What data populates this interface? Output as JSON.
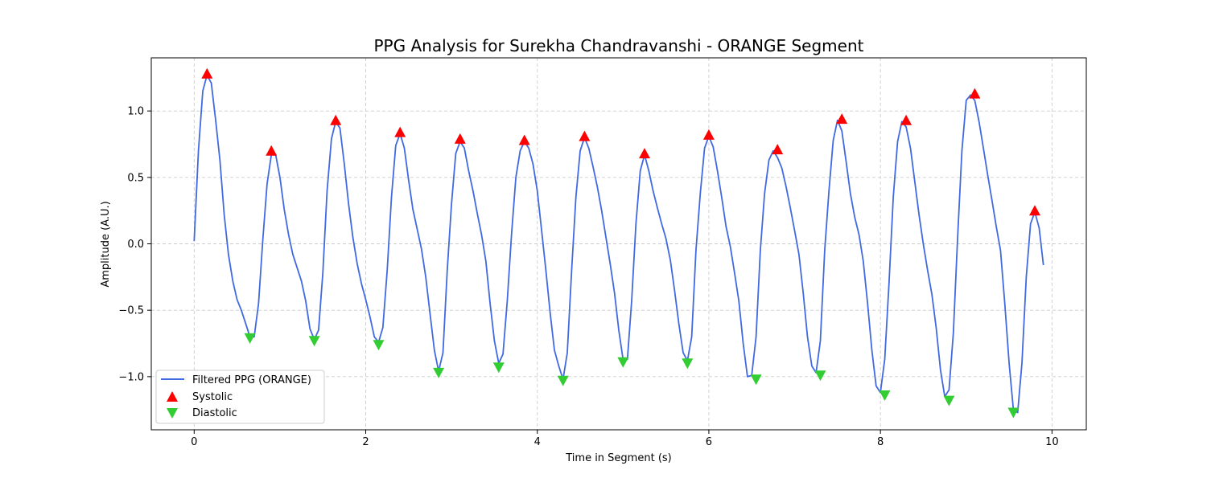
{
  "chart_data": {
    "type": "line",
    "title": "PPG Analysis for Surekha Chandravanshi - ORANGE Segment",
    "xlabel": "Time in Segment (s)",
    "ylabel": "Amplitude (A.U.)",
    "xlim": [
      -0.5,
      10.4
    ],
    "ylim": [
      -1.4,
      1.4
    ],
    "xticks": [
      0,
      2,
      4,
      6,
      8,
      10
    ],
    "xtick_labels": [
      "0",
      "2",
      "4",
      "6",
      "8",
      "10"
    ],
    "yticks": [
      -1.0,
      -0.5,
      0.0,
      0.5,
      1.0
    ],
    "ytick_labels": [
      "−1.0",
      "−0.5",
      "0.0",
      "0.5",
      "1.0"
    ],
    "grid": true,
    "legend_position": "lower-left",
    "series": [
      {
        "name": "Filtered PPG (ORANGE)",
        "color": "#4169E1",
        "x": [
          0,
          0.05,
          0.1,
          0.15,
          0.2,
          0.25,
          0.3,
          0.35,
          0.4,
          0.45,
          0.5,
          0.55,
          0.6,
          0.65,
          0.7,
          0.75,
          0.8,
          0.85,
          0.9,
          0.95,
          1.0,
          1.05,
          1.1,
          1.15,
          1.25,
          1.3,
          1.35,
          1.4,
          1.45,
          1.5,
          1.55,
          1.6,
          1.65,
          1.7,
          1.75,
          1.8,
          1.85,
          1.9,
          1.95,
          2.0,
          2.05,
          2.1,
          2.15,
          2.2,
          2.25,
          2.3,
          2.35,
          2.4,
          2.45,
          2.5,
          2.55,
          2.6,
          2.65,
          2.7,
          2.75,
          2.8,
          2.85,
          2.9,
          2.95,
          3.0,
          3.05,
          3.1,
          3.15,
          3.2,
          3.25,
          3.3,
          3.35,
          3.4,
          3.45,
          3.5,
          3.55,
          3.6,
          3.65,
          3.7,
          3.75,
          3.8,
          3.85,
          3.9,
          3.95,
          4.0,
          4.05,
          4.1,
          4.15,
          4.2,
          4.25,
          4.3,
          4.35,
          4.4,
          4.45,
          4.5,
          4.55,
          4.6,
          4.65,
          4.7,
          4.75,
          4.8,
          4.85,
          4.9,
          4.95,
          5.0,
          5.05,
          5.1,
          5.15,
          5.2,
          5.25,
          5.3,
          5.35,
          5.4,
          5.45,
          5.5,
          5.55,
          5.6,
          5.65,
          5.7,
          5.75,
          5.8,
          5.85,
          5.9,
          5.95,
          6.0,
          6.05,
          6.1,
          6.15,
          6.2,
          6.25,
          6.3,
          6.35,
          6.4,
          6.45,
          6.5,
          6.55,
          6.6,
          6.65,
          6.7,
          6.75,
          6.8,
          6.85,
          6.9,
          6.95,
          7.0,
          7.05,
          7.1,
          7.15,
          7.2,
          7.25,
          7.3,
          7.35,
          7.4,
          7.45,
          7.5,
          7.55,
          7.6,
          7.65,
          7.7,
          7.75,
          7.8,
          7.85,
          7.9,
          7.95,
          8.0,
          8.05,
          8.1,
          8.15,
          8.2,
          8.25,
          8.3,
          8.35,
          8.4,
          8.45,
          8.5,
          8.55,
          8.6,
          8.65,
          8.7,
          8.75,
          8.8,
          8.85,
          8.9,
          8.95,
          9.0,
          9.05,
          9.1,
          9.15,
          9.2,
          9.25,
          9.3,
          9.35,
          9.4,
          9.45,
          9.5,
          9.55,
          9.6,
          9.65,
          9.7,
          9.75,
          9.8,
          9.85,
          9.9
        ],
        "y": [
          0.02,
          0.7,
          1.15,
          1.27,
          1.21,
          0.93,
          0.63,
          0.22,
          -0.08,
          -0.28,
          -0.42,
          -0.5,
          -0.6,
          -0.7,
          -0.7,
          -0.45,
          0.03,
          0.45,
          0.67,
          0.67,
          0.5,
          0.26,
          0.07,
          -0.08,
          -0.28,
          -0.43,
          -0.64,
          -0.72,
          -0.65,
          -0.22,
          0.4,
          0.79,
          0.92,
          0.87,
          0.6,
          0.3,
          0.05,
          -0.15,
          -0.3,
          -0.42,
          -0.55,
          -0.7,
          -0.74,
          -0.63,
          -0.2,
          0.35,
          0.74,
          0.83,
          0.72,
          0.48,
          0.26,
          0.11,
          -0.04,
          -0.25,
          -0.53,
          -0.8,
          -0.96,
          -0.82,
          -0.2,
          0.3,
          0.68,
          0.77,
          0.72,
          0.55,
          0.4,
          0.23,
          0.07,
          -0.13,
          -0.45,
          -0.73,
          -0.9,
          -0.83,
          -0.43,
          0.07,
          0.5,
          0.7,
          0.77,
          0.72,
          0.6,
          0.4,
          0.1,
          -0.2,
          -0.52,
          -0.8,
          -0.92,
          -1.02,
          -0.82,
          -0.2,
          0.35,
          0.7,
          0.8,
          0.72,
          0.58,
          0.43,
          0.25,
          0.05,
          -0.15,
          -0.37,
          -0.65,
          -0.87,
          -0.87,
          -0.43,
          0.15,
          0.55,
          0.67,
          0.55,
          0.4,
          0.27,
          0.15,
          0.04,
          -0.12,
          -0.35,
          -0.6,
          -0.82,
          -0.88,
          -0.7,
          -0.05,
          0.38,
          0.72,
          0.81,
          0.73,
          0.55,
          0.35,
          0.13,
          -0.02,
          -0.22,
          -0.43,
          -0.75,
          -1.0,
          -0.99,
          -0.7,
          -0.05,
          0.38,
          0.63,
          0.7,
          0.65,
          0.57,
          0.43,
          0.27,
          0.1,
          -0.08,
          -0.37,
          -0.7,
          -0.92,
          -0.97,
          -0.73,
          -0.05,
          0.4,
          0.78,
          0.93,
          0.85,
          0.62,
          0.38,
          0.2,
          0.07,
          -0.13,
          -0.45,
          -0.8,
          -1.07,
          -1.12,
          -0.87,
          -0.3,
          0.35,
          0.77,
          0.92,
          0.88,
          0.72,
          0.47,
          0.22,
          0.0,
          -0.2,
          -0.38,
          -0.63,
          -0.95,
          -1.15,
          -1.1,
          -0.67,
          0.05,
          0.7,
          1.08,
          1.12,
          1.08,
          0.92,
          0.72,
          0.52,
          0.33,
          0.13,
          -0.05,
          -0.45,
          -0.9,
          -1.25,
          -1.27,
          -0.9,
          -0.25,
          0.15,
          0.24,
          0.12,
          -0.16
        ]
      }
    ],
    "markers": [
      {
        "name": "Systolic",
        "color": "#FF0000",
        "shape": "triangle-up",
        "x": [
          0.15,
          0.9,
          1.65,
          2.4,
          3.1,
          3.85,
          4.55,
          5.25,
          6.0,
          6.8,
          7.55,
          8.3,
          9.1,
          9.8
        ],
        "y": [
          1.28,
          0.7,
          0.93,
          0.84,
          0.79,
          0.78,
          0.81,
          0.68,
          0.82,
          0.71,
          0.94,
          0.93,
          1.13,
          0.25
        ]
      },
      {
        "name": "Diastolic",
        "color": "#32CD32",
        "shape": "triangle-down",
        "x": [
          0.65,
          1.4,
          2.15,
          2.85,
          3.55,
          4.3,
          5.0,
          5.75,
          6.55,
          7.3,
          8.05,
          8.8,
          9.55
        ],
        "y": [
          -0.71,
          -0.73,
          -0.76,
          -0.97,
          -0.93,
          -1.03,
          -0.89,
          -0.9,
          -1.02,
          -0.99,
          -1.14,
          -1.18,
          -1.27
        ]
      }
    ]
  }
}
